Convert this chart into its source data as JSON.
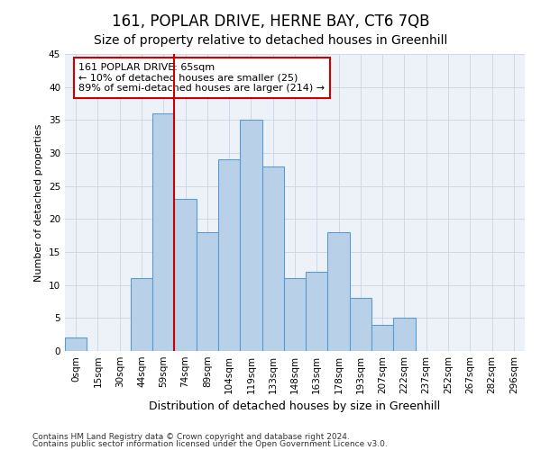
{
  "title": "161, POPLAR DRIVE, HERNE BAY, CT6 7QB",
  "subtitle": "Size of property relative to detached houses in Greenhill",
  "xlabel": "Distribution of detached houses by size in Greenhill",
  "ylabel": "Number of detached properties",
  "footnote1": "Contains HM Land Registry data © Crown copyright and database right 2024.",
  "footnote2": "Contains public sector information licensed under the Open Government Licence v3.0.",
  "bar_labels": [
    "0sqm",
    "15sqm",
    "30sqm",
    "44sqm",
    "59sqm",
    "74sqm",
    "89sqm",
    "104sqm",
    "119sqm",
    "133sqm",
    "148sqm",
    "163sqm",
    "178sqm",
    "193sqm",
    "207sqm",
    "222sqm",
    "237sqm",
    "252sqm",
    "267sqm",
    "282sqm",
    "296sqm"
  ],
  "bar_values": [
    2,
    0,
    0,
    11,
    36,
    23,
    18,
    29,
    35,
    28,
    11,
    12,
    18,
    8,
    4,
    5,
    0,
    0,
    0,
    0,
    0
  ],
  "bar_color": "#b8d0e8",
  "bar_edge_color": "#5b9bd5",
  "grid_color": "#c8d4e4",
  "background_color": "#edf2f9",
  "vline_x": 4.5,
  "vline_color": "#cc0000",
  "annotation_text": "161 POPLAR DRIVE: 65sqm\n← 10% of detached houses are smaller (25)\n89% of semi-detached houses are larger (214) →",
  "annotation_box_color": "white",
  "annotation_box_edge": "#cc0000",
  "ylim": [
    0,
    45
  ],
  "yticks": [
    0,
    5,
    10,
    15,
    20,
    25,
    30,
    35,
    40,
    45
  ],
  "title_fontsize": 12,
  "subtitle_fontsize": 10,
  "axis_label_fontsize": 9,
  "ylabel_fontsize": 8,
  "tick_fontsize": 7.5,
  "annotation_fontsize": 8
}
